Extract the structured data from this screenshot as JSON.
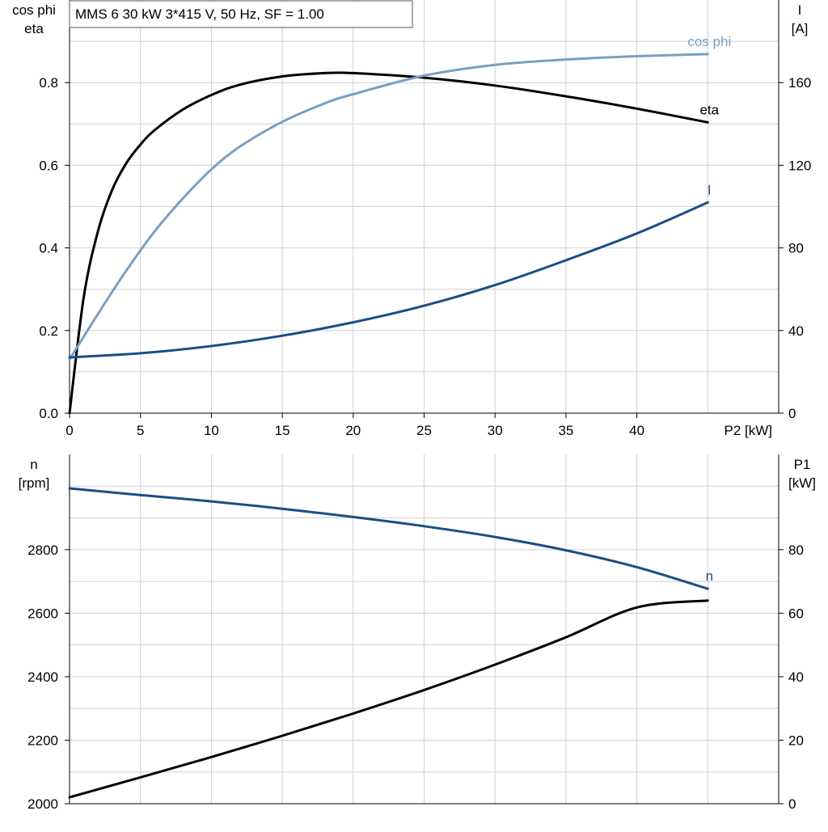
{
  "chart_data": [
    {
      "type": "line",
      "title": "MMS 6   30 kW   3*415 V, 50 Hz, SF = 1.00",
      "xlabel": "P2 [kW]",
      "x_ticks": [
        0,
        5,
        10,
        15,
        20,
        25,
        30,
        35,
        40
      ],
      "x_range": [
        0,
        50
      ],
      "grid": true,
      "left_axis": {
        "label_line1": "cos phi",
        "label_line2": "eta",
        "range": [
          0,
          1.0
        ],
        "ticks": [
          "0.0",
          "0.2",
          "0.4",
          "0.6",
          "0.8"
        ],
        "tick_values": [
          0.0,
          0.2,
          0.4,
          0.6,
          0.8
        ]
      },
      "right_axis": {
        "label_line1": "I",
        "label_line2": "[A]",
        "range": [
          0,
          200
        ],
        "ticks": [
          "0",
          "40",
          "80",
          "120",
          "160"
        ],
        "tick_values": [
          0,
          40,
          80,
          120,
          160
        ]
      },
      "series": [
        {
          "name": "eta",
          "axis": "left",
          "color": "#000000",
          "x": [
            0,
            1,
            2,
            3,
            4,
            5,
            6,
            8,
            10,
            12,
            15,
            18,
            20,
            25,
            30,
            35,
            40,
            45
          ],
          "y": [
            0.0,
            0.28,
            0.44,
            0.54,
            0.605,
            0.65,
            0.685,
            0.735,
            0.77,
            0.795,
            0.815,
            0.823,
            0.823,
            0.812,
            0.793,
            0.767,
            0.737,
            0.704
          ]
        },
        {
          "name": "cos phi",
          "color": "#7a9fc0",
          "axis": "left",
          "x": [
            0,
            2,
            4,
            6,
            8,
            10,
            12,
            15,
            18,
            20,
            25,
            30,
            35,
            40,
            45
          ],
          "y": [
            0.13,
            0.24,
            0.345,
            0.44,
            0.52,
            0.59,
            0.645,
            0.705,
            0.75,
            0.772,
            0.817,
            0.843,
            0.856,
            0.864,
            0.869
          ]
        },
        {
          "name": "I",
          "color": "#1a4f85",
          "axis": "right",
          "x": [
            0,
            5,
            10,
            15,
            20,
            25,
            30,
            35,
            40,
            45
          ],
          "y": [
            27,
            29,
            32.5,
            37.5,
            44,
            52,
            62,
            74,
            87,
            102
          ]
        }
      ]
    },
    {
      "type": "line",
      "x_range": [
        0,
        50
      ],
      "grid": true,
      "left_axis": {
        "label_line1": "n",
        "label_line2": "[rpm]",
        "range": [
          2000,
          3100
        ],
        "ticks": [
          "2000",
          "2200",
          "2400",
          "2600",
          "2800"
        ],
        "tick_values": [
          2000,
          2200,
          2400,
          2600,
          2800
        ]
      },
      "right_axis": {
        "label_line1": "P1",
        "label_line2": "[kW]",
        "range": [
          0,
          110
        ],
        "ticks": [
          "0",
          "20",
          "40",
          "60",
          "80"
        ],
        "tick_values": [
          0,
          20,
          40,
          60,
          80
        ]
      },
      "series": [
        {
          "name": "n",
          "color": "#1a4f85",
          "axis": "left",
          "x": [
            0,
            5,
            10,
            15,
            20,
            25,
            30,
            35,
            40,
            45
          ],
          "y": [
            2993,
            2972,
            2952,
            2929,
            2903,
            2874,
            2840,
            2798,
            2745,
            2677
          ]
        },
        {
          "name": "P1",
          "color": "#000000",
          "axis": "right",
          "show_label": false,
          "x": [
            0,
            5,
            10,
            15,
            20,
            25,
            30,
            35,
            40,
            45
          ],
          "y": [
            2,
            8.3,
            14.7,
            21.4,
            28.4,
            35.8,
            43.8,
            52.4,
            61.8,
            64
          ]
        }
      ]
    }
  ]
}
